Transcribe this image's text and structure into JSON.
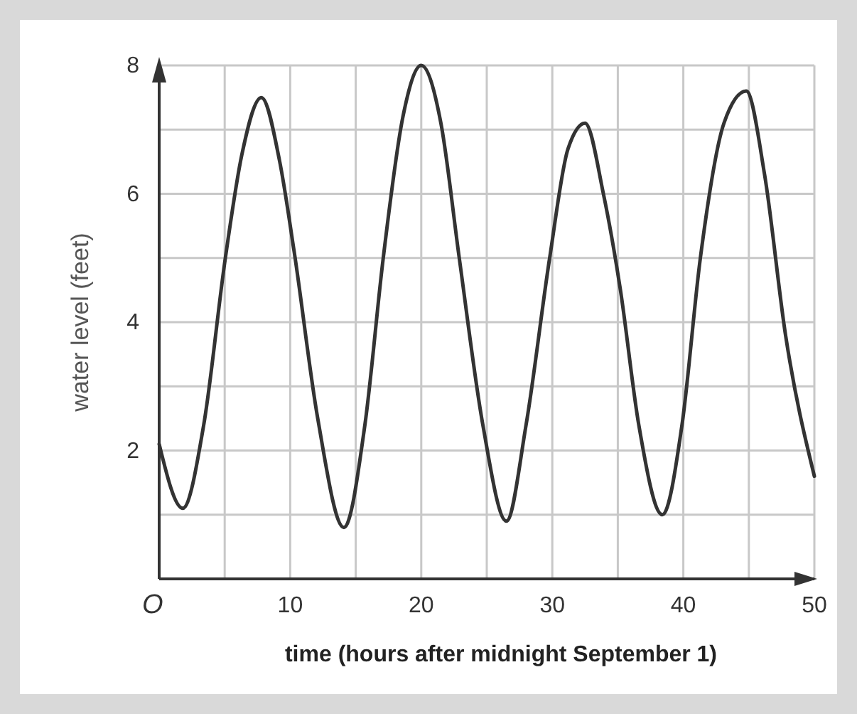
{
  "chart_data": {
    "type": "line",
    "xlabel": "time (hours after midnight September 1)",
    "ylabel": "water level (feet)",
    "annotations": [
      "O"
    ],
    "x": [
      0,
      1.8,
      3.4,
      5.05,
      6.3,
      7.8,
      9.2,
      10.3,
      12.1,
      14.1,
      15.7,
      17.1,
      18.6,
      20.0,
      21.5,
      22.9,
      24.7,
      26.5,
      28.0,
      29.8,
      31.2,
      32.5,
      33.9,
      35.2,
      36.6,
      38.4,
      39.9,
      41.3,
      43.1,
      44.8,
      46.2,
      47.8,
      50
    ],
    "series": [
      {
        "color": "#333333",
        "values": [
          2.1,
          1.1,
          2.4,
          5.0,
          6.6,
          7.5,
          6.5,
          5.1,
          2.5,
          0.8,
          2.4,
          5.0,
          7.2,
          8.0,
          7.1,
          5.0,
          2.4,
          0.9,
          2.4,
          5.0,
          6.7,
          7.1,
          6.0,
          4.5,
          2.4,
          1.0,
          2.4,
          5.0,
          7.1,
          7.6,
          6.3,
          3.8,
          1.6
        ]
      }
    ],
    "xlim": [
      0,
      50
    ],
    "ylim": [
      0,
      8
    ],
    "xticks": [
      {
        "value": 5,
        "label": null
      },
      10,
      {
        "value": 15,
        "label": null
      },
      20,
      {
        "value": 25,
        "label": null
      },
      30,
      {
        "value": 35,
        "label": null
      },
      40,
      {
        "value": 45,
        "label": null
      },
      50
    ],
    "yticks": [
      {
        "value": 1,
        "label": null
      },
      2,
      {
        "value": 3,
        "label": null
      },
      4,
      {
        "value": 5,
        "label": null
      },
      6,
      {
        "value": 7,
        "label": null
      },
      8
    ],
    "grid": true,
    "marker": "none",
    "line_style": "solid"
  }
}
